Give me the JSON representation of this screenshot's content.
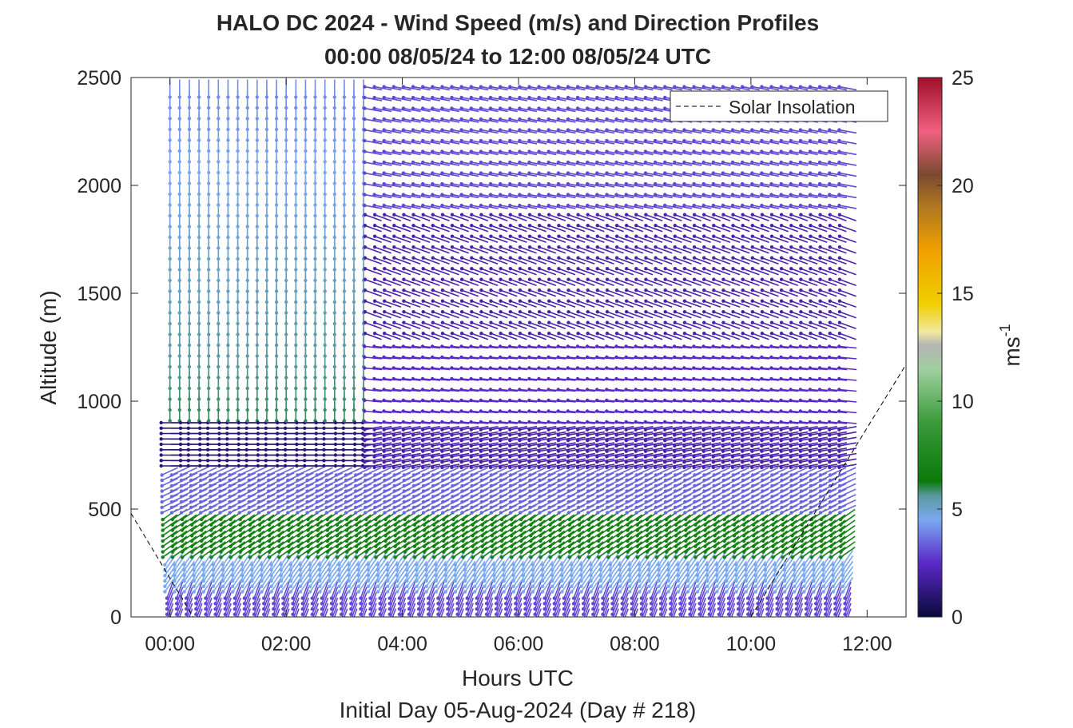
{
  "chart_data": {
    "type": "wind-barb-profile",
    "title": "HALO DC 2024 - Wind Speed (m/s) and Direction Profiles",
    "subtitle": "00:00 08/05/24 to 12:00 08/05/24  UTC",
    "xlabel": "Hours UTC",
    "xlabel2": "Initial Day 05-Aug-2024 (Day # 218)",
    "ylabel": "Altitude (m)",
    "xlim_hours": [
      -0.67,
      12.67
    ],
    "ylim": [
      0,
      2500
    ],
    "x_ticks": [
      {
        "hour": 0,
        "label": "00:00"
      },
      {
        "hour": 2,
        "label": "02:00"
      },
      {
        "hour": 4,
        "label": "04:00"
      },
      {
        "hour": 6,
        "label": "06:00"
      },
      {
        "hour": 8,
        "label": "08:00"
      },
      {
        "hour": 10,
        "label": "10:00"
      },
      {
        "hour": 12,
        "label": "12:00"
      }
    ],
    "y_ticks": [
      {
        "value": 0,
        "label": "0"
      },
      {
        "value": 500,
        "label": "500"
      },
      {
        "value": 1000,
        "label": "1000"
      },
      {
        "value": 1500,
        "label": "1500"
      },
      {
        "value": 2000,
        "label": "2000"
      },
      {
        "value": 2500,
        "label": "2500"
      }
    ],
    "legend": {
      "label": "Solar Insolation",
      "position": "top-right"
    },
    "colorbar": {
      "label": "ms",
      "label_superscript": "-1",
      "range": [
        0,
        25
      ],
      "ticks": [
        {
          "value": 0,
          "label": "0"
        },
        {
          "value": 5,
          "label": "5"
        },
        {
          "value": 10,
          "label": "10"
        },
        {
          "value": 15,
          "label": "15"
        },
        {
          "value": 20,
          "label": "20"
        },
        {
          "value": 25,
          "label": "25"
        }
      ],
      "stops": [
        {
          "value": 0,
          "color": "#0a0a3c"
        },
        {
          "value": 2.5,
          "color": "#5a28c8"
        },
        {
          "value": 4.5,
          "color": "#7aa8f0"
        },
        {
          "value": 5.6,
          "color": "#5a9aa0"
        },
        {
          "value": 6.3,
          "color": "#0a7a0a"
        },
        {
          "value": 9,
          "color": "#3a9a3a"
        },
        {
          "value": 11.5,
          "color": "#a0d0a0"
        },
        {
          "value": 12.6,
          "color": "#b4b4b4"
        },
        {
          "value": 13.2,
          "color": "#f0e8a0"
        },
        {
          "value": 14.5,
          "color": "#f0d000"
        },
        {
          "value": 17,
          "color": "#f0a000"
        },
        {
          "value": 19,
          "color": "#b07820"
        },
        {
          "value": 20.5,
          "color": "#7a4a30"
        },
        {
          "value": 22.5,
          "color": "#f06080"
        },
        {
          "value": 25,
          "color": "#a0102a"
        }
      ]
    },
    "solar_insolation_line": [
      {
        "hour": -0.67,
        "y": 480
      },
      {
        "hour": 0.4,
        "y": 0
      },
      {
        "hour": 10.0,
        "y": 0
      },
      {
        "hour": 12.67,
        "y": 1170
      }
    ],
    "wind_grid": {
      "time_start_hours": 0,
      "time_step_hours": 0.1667,
      "time_count": 71,
      "altitude_bands": [
        {
          "from": 0,
          "to": 150,
          "speed": 3.0,
          "direction_deg": 200,
          "step_m": 25
        },
        {
          "from": 150,
          "to": 300,
          "speed": 4.5,
          "direction_deg": 215,
          "step_m": 25
        },
        {
          "from": 300,
          "to": 500,
          "speed": 7.0,
          "direction_deg": 235,
          "step_m": 25
        },
        {
          "from": 500,
          "to": 700,
          "speed": 3.5,
          "direction_deg": 245,
          "step_m": 25
        },
        {
          "from": 700,
          "to": 900,
          "speed": 2.0,
          "direction_deg": 260,
          "step_m": 25
        },
        {
          "from": 900,
          "to": 1300,
          "speed": 2.5,
          "direction_deg": 275,
          "step_m": 50
        },
        {
          "from": 1300,
          "to": 1900,
          "speed": 2.0,
          "direction_deg": 290,
          "step_m": 50
        },
        {
          "from": 1900,
          "to": 2500,
          "speed": 3.0,
          "direction_deg": 280,
          "step_m": 50
        }
      ],
      "early_period_hours": [
        0,
        3.5
      ],
      "early_period_speed": 6.0,
      "early_period_direction_deg": 180
    }
  }
}
